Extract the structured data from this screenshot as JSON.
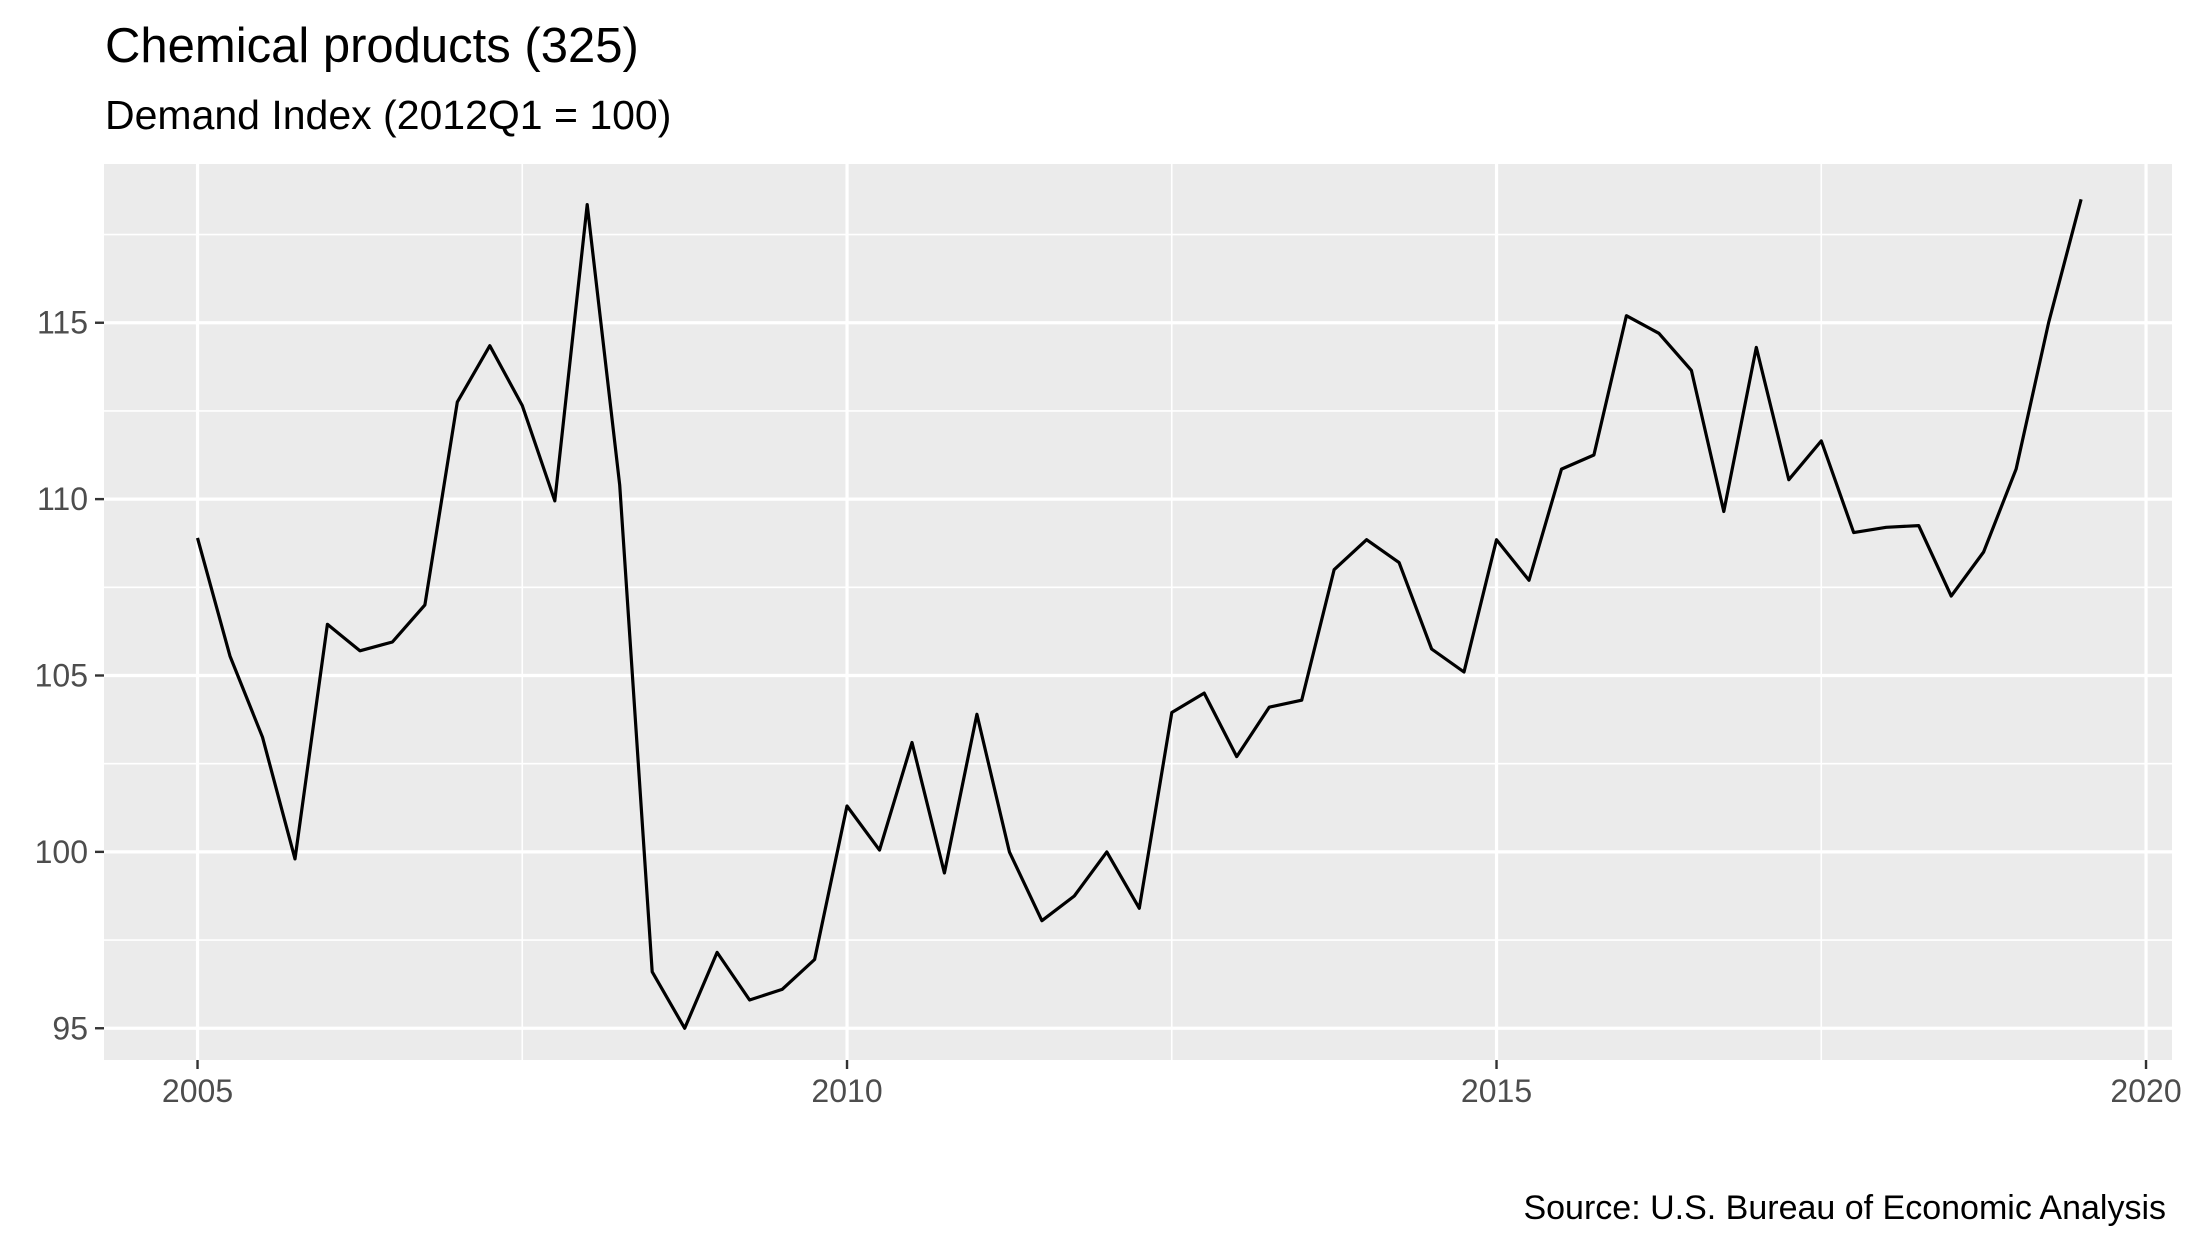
{
  "chart_data": {
    "type": "line",
    "title": "Chemical products (325)",
    "subtitle": "Demand Index (2012Q1 = 100)",
    "caption": "Source: U.S. Bureau of Economic Analysis",
    "xlabel": "",
    "ylabel": "",
    "x_ticks": [
      "2005",
      "2010",
      "2015",
      "2020"
    ],
    "y_ticks": [
      "95",
      "100",
      "105",
      "110",
      "115"
    ],
    "xlim": [
      2004.28,
      2020.2
    ],
    "ylim": [
      94.1,
      119.5
    ],
    "grid": true,
    "colors": {
      "panel": "#ebebeb",
      "grid": "#ffffff",
      "line": "#000000",
      "tick_text": "#4d4d4d",
      "tick_mark": "#333333"
    },
    "series": [
      {
        "x": [
          2005.0,
          2005.25,
          2005.5,
          2005.75,
          2006.0,
          2006.25,
          2006.5,
          2006.75,
          2007.0,
          2007.25,
          2007.5,
          2007.75,
          2008.0,
          2008.25,
          2008.5,
          2008.75,
          2009.0,
          2009.25,
          2009.5,
          2009.75,
          2010.0,
          2010.25,
          2010.5,
          2010.75,
          2011.0,
          2011.25,
          2011.5,
          2011.75,
          2012.0,
          2012.25,
          2012.5,
          2012.75,
          2013.0,
          2013.25,
          2013.5,
          2013.75,
          2014.0,
          2014.25,
          2014.5,
          2014.75,
          2015.0,
          2015.25,
          2015.5,
          2015.75,
          2016.0,
          2016.25,
          2016.5,
          2016.75,
          2017.0,
          2017.25,
          2017.5,
          2017.75,
          2018.0,
          2018.25,
          2018.5,
          2018.75,
          2019.0,
          2019.25,
          2019.5
        ],
        "values": [
          108.9,
          105.55,
          103.25,
          99.8,
          106.45,
          105.7,
          105.95,
          107.0,
          112.75,
          114.35,
          112.65,
          109.95,
          118.35,
          110.4,
          96.6,
          95.0,
          97.15,
          95.8,
          96.1,
          96.95,
          101.3,
          100.05,
          103.1,
          99.4,
          103.9,
          100.0,
          98.05,
          98.75,
          100.0,
          98.4,
          103.95,
          104.5,
          102.7,
          104.1,
          104.3,
          108.0,
          108.85,
          108.2,
          105.75,
          105.1,
          108.85,
          107.7,
          110.85,
          111.25,
          115.2,
          114.7,
          113.65,
          109.65,
          114.3,
          110.55,
          111.65,
          109.05,
          109.2,
          109.25,
          107.25,
          108.5,
          110.85,
          115.0,
          118.5
        ]
      }
    ]
  }
}
